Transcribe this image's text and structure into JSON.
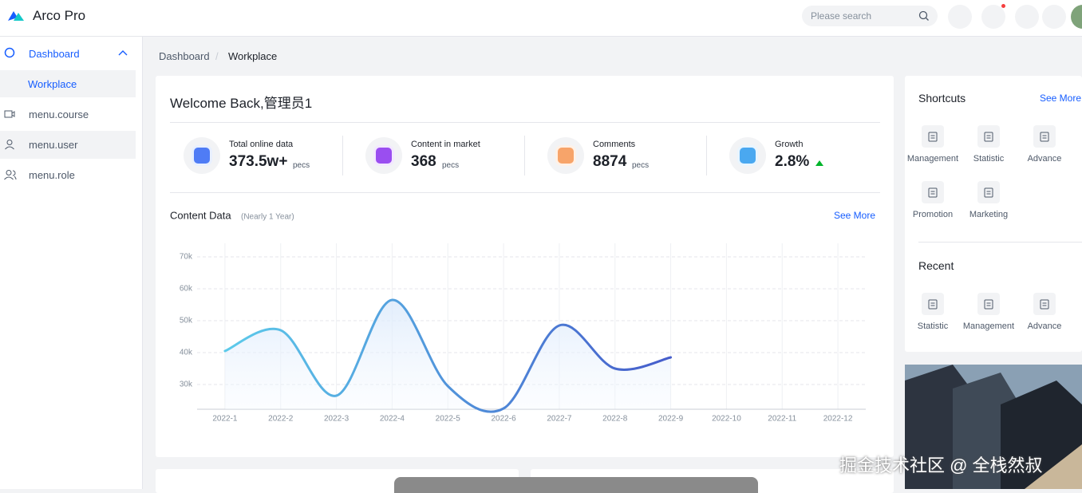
{
  "header": {
    "logo": "Arco Pro",
    "search_placeholder": "Please search"
  },
  "menu": [
    "Dashboard",
    "Workplace",
    "menu.course",
    "menu.user",
    "menu.role"
  ],
  "breadcrumb": [
    "Dashboard",
    "Workplace"
  ],
  "welcome": "Welcome Back,管理员1",
  "stats": [
    {
      "label": "Total online data",
      "value": "373.5w+",
      "unit": "pecs"
    },
    {
      "label": "Content in market",
      "value": "368",
      "unit": "pecs"
    },
    {
      "label": "Comments",
      "value": "8874",
      "unit": "pecs"
    },
    {
      "label": "Growth",
      "value": "2.8%"
    }
  ],
  "content_link": "See More",
  "chart_data": {
    "type": "line",
    "title": "Content Data",
    "subtitle": "(Nearly 1 Year)",
    "categories": [
      "2022-1",
      "2022-2",
      "2022-3",
      "2022-4",
      "2022-5",
      "2022-6",
      "2022-7",
      "2022-8",
      "2022-9",
      "2022-10",
      "2022-11",
      "2022-12"
    ],
    "values": [
      40500,
      47000,
      26500,
      56500,
      29500,
      22500,
      48500,
      35000,
      38500,
      null,
      null,
      null
    ],
    "colors": [
      "#5ed1ec",
      "#4456c9"
    ],
    "ylim": [
      22250,
      74250
    ],
    "yticks": [
      {
        "value": 30000,
        "label": "30k"
      },
      {
        "value": 40000,
        "label": "40k"
      },
      {
        "value": 50000,
        "label": "50k"
      },
      {
        "value": 60000,
        "label": "60k"
      },
      {
        "value": 70000,
        "label": "70k"
      }
    ],
    "grid": true
  },
  "shortcuts": {
    "title": "Shortcuts",
    "see_more": "See More",
    "items": [
      "Management",
      "Statistic",
      "Advance",
      "Promotion",
      "Marketing"
    ]
  },
  "recent": {
    "title": "Recent",
    "items": [
      "Statistic",
      "Management",
      "Advance"
    ]
  },
  "watermark": "掘金技术社区 @ 全栈然叔"
}
